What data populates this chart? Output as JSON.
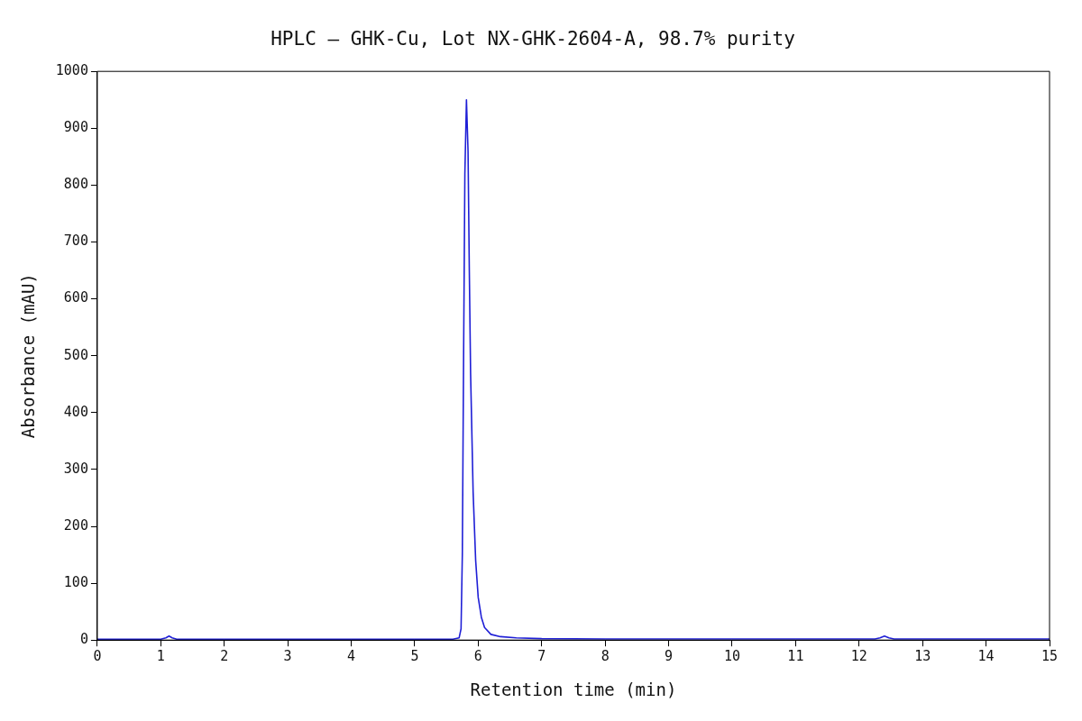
{
  "chart_data": {
    "type": "line",
    "title": "HPLC — GHK-Cu, Lot NX-GHK-2604-A, 98.7% purity",
    "xlabel": "Retention time (min)",
    "ylabel": "Absorbance (mAU)",
    "x": [
      0,
      1.0,
      1.08,
      1.13,
      1.18,
      1.25,
      5.6,
      5.7,
      5.73,
      5.75,
      5.77,
      5.79,
      5.815,
      5.84,
      5.86,
      5.88,
      5.92,
      5.96,
      6.0,
      6.05,
      6.1,
      6.2,
      6.35,
      6.6,
      7.0,
      8,
      12.25,
      12.33,
      12.4,
      12.47,
      12.55,
      15
    ],
    "series": [
      {
        "color": "#1f1fd6",
        "values": [
          1.5,
          1.5,
          4,
          7,
          4,
          1.5,
          1.5,
          4,
          20,
          150,
          500,
          820,
          950,
          860,
          650,
          470,
          260,
          140,
          75,
          40,
          22,
          10,
          6,
          4,
          2.5,
          2,
          2,
          4,
          7,
          4,
          2,
          2
        ]
      }
    ],
    "xlim": [
      0,
      15
    ],
    "xticks": [
      0,
      1,
      2,
      3,
      4,
      5,
      6,
      7,
      8,
      9,
      10,
      11,
      12,
      13,
      14,
      15
    ],
    "ylim": [
      0,
      1000
    ],
    "yticks": [
      0,
      100,
      200,
      300,
      400,
      500,
      600,
      700,
      800,
      900,
      1000
    ],
    "grid": false,
    "legend": false
  }
}
